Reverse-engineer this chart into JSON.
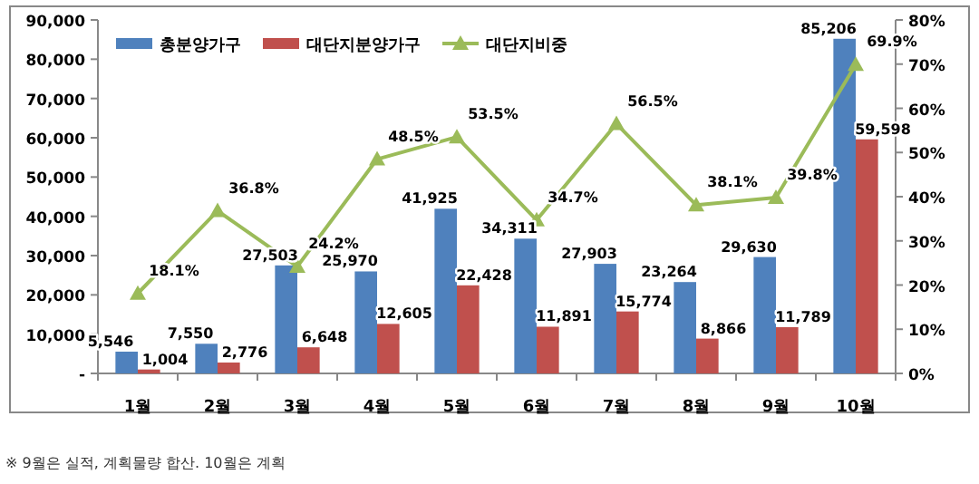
{
  "chart_data": {
    "type": "bar",
    "categories": [
      "1월",
      "2월",
      "3월",
      "4월",
      "5월",
      "6월",
      "7월",
      "8월",
      "9월",
      "10월"
    ],
    "series": [
      {
        "name": "총분양가구",
        "color": "#4f81bd",
        "values": [
          5546,
          7550,
          27503,
          25970,
          41925,
          34311,
          27903,
          23264,
          29630,
          85206
        ],
        "value_labels": [
          "5,546",
          "7,550",
          "27,503",
          "25,970",
          "41,925",
          "34,311",
          "27,903",
          "23,264",
          "29,630",
          "85,206"
        ]
      },
      {
        "name": "대단지분양가구",
        "color": "#c0504d",
        "values": [
          1004,
          2776,
          6648,
          12605,
          22428,
          11891,
          15774,
          8866,
          11789,
          59598
        ],
        "value_labels": [
          "1,004",
          "2,776",
          "6,648",
          "12,605",
          "22,428",
          "11,891",
          "15,774",
          "8,866",
          "11,789",
          "59,598"
        ]
      },
      {
        "name": "대단지비중",
        "type": "line",
        "axis": "y2",
        "color": "#9bbb59",
        "values": [
          18.1,
          36.8,
          24.2,
          48.5,
          53.5,
          34.7,
          56.5,
          38.1,
          39.8,
          69.9
        ],
        "value_labels": [
          "18.1%",
          "36.8%",
          "24.2%",
          "48.5%",
          "53.5%",
          "34.7%",
          "56.5%",
          "38.1%",
          "39.8%",
          "69.9%"
        ]
      }
    ],
    "ylim": [
      0,
      90000
    ],
    "yticks": [
      {
        "value": 0,
        "label": "-"
      },
      {
        "value": 10000,
        "label": "10,000"
      },
      {
        "value": 20000,
        "label": "20,000"
      },
      {
        "value": 30000,
        "label": "30,000"
      },
      {
        "value": 40000,
        "label": "40,000"
      },
      {
        "value": 50000,
        "label": "50,000"
      },
      {
        "value": 60000,
        "label": "60,000"
      },
      {
        "value": 70000,
        "label": "70,000"
      },
      {
        "value": 80000,
        "label": "80,000"
      },
      {
        "value": 90000,
        "label": "90,000"
      }
    ],
    "y2lim": [
      0,
      80
    ],
    "y2ticks": [
      {
        "value": 0,
        "label": "0%"
      },
      {
        "value": 10,
        "label": "10%"
      },
      {
        "value": 20,
        "label": "20%"
      },
      {
        "value": 30,
        "label": "30%"
      },
      {
        "value": 40,
        "label": "40%"
      },
      {
        "value": 50,
        "label": "50%"
      },
      {
        "value": 60,
        "label": "60%"
      },
      {
        "value": 70,
        "label": "70%"
      },
      {
        "value": 80,
        "label": "80%"
      }
    ],
    "marker": "triangle",
    "legend": "top left",
    "grid": false,
    "annotations": [
      "※ 9월은 실적, 계획물량 합산. 10월은 계획"
    ]
  }
}
